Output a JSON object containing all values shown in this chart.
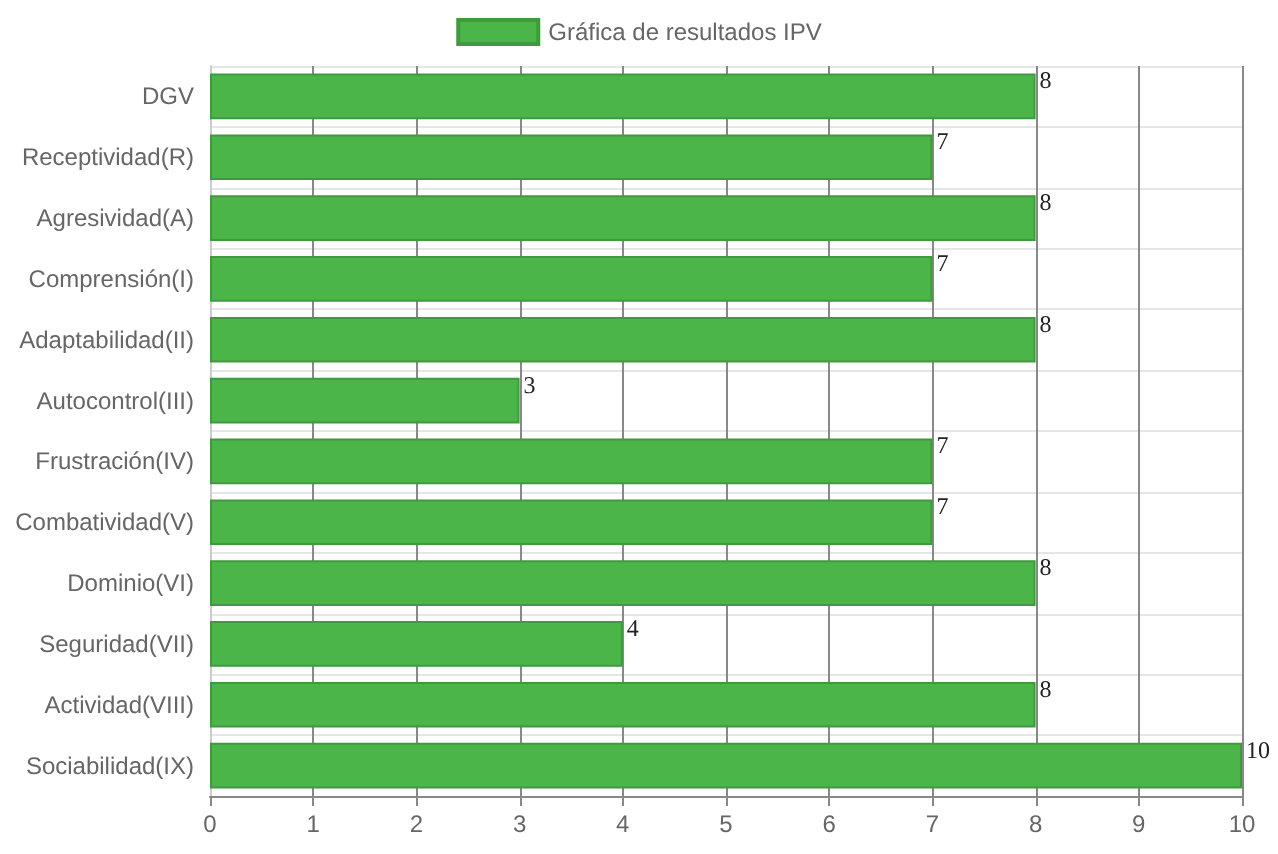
{
  "chart_data": {
    "type": "bar",
    "orientation": "horizontal",
    "categories": [
      "DGV",
      "Receptividad(R)",
      "Agresividad(A)",
      "Comprensión(I)",
      "Adaptabilidad(II)",
      "Autocontrol(III)",
      "Frustración(IV)",
      "Combatividad(V)",
      "Dominio(VI)",
      "Seguridad(VII)",
      "Actividad(VIII)",
      "Sociabilidad(IX)"
    ],
    "series": [
      {
        "name": "Gráfica de resultados IPV",
        "color": "#4cb54a",
        "values": [
          8,
          7,
          8,
          7,
          8,
          3,
          7,
          7,
          8,
          4,
          8,
          10
        ]
      }
    ],
    "xlim": [
      0,
      10
    ],
    "xticks": [
      0,
      1,
      2,
      3,
      4,
      5,
      6,
      7,
      8,
      9,
      10
    ],
    "grid": true,
    "legend": "top",
    "data_labels": true
  }
}
